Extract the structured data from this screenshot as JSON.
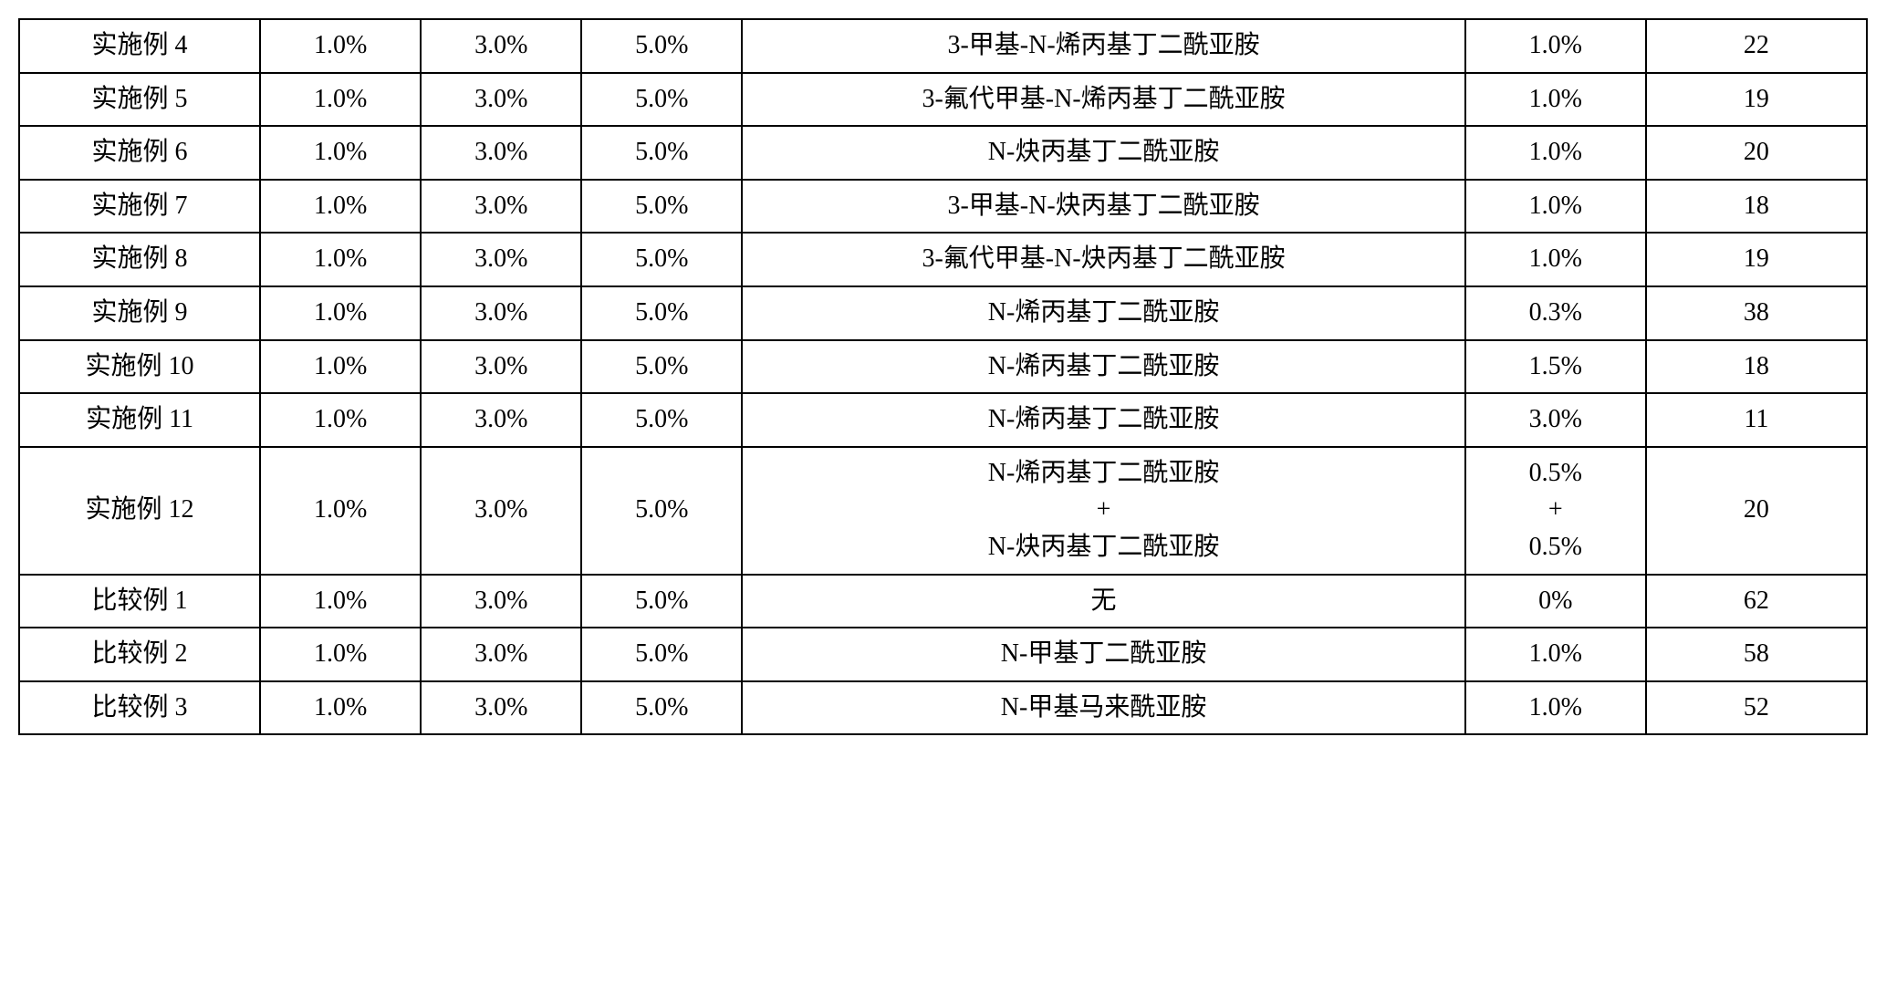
{
  "table": {
    "border_color": "#000000",
    "background_color": "#ffffff",
    "text_color": "#000000",
    "font_size_pt": 21,
    "column_widths_pct": [
      12,
      8,
      8,
      8,
      36,
      9,
      11
    ],
    "rows": [
      {
        "label": "实施例 4",
        "p1": "1.0%",
        "p2": "3.0%",
        "p3": "5.0%",
        "name": "3-甲基-N-烯丙基丁二酰亚胺",
        "amount": "1.0%",
        "result": "22"
      },
      {
        "label": "实施例 5",
        "p1": "1.0%",
        "p2": "3.0%",
        "p3": "5.0%",
        "name": "3-氟代甲基-N-烯丙基丁二酰亚胺",
        "amount": "1.0%",
        "result": "19"
      },
      {
        "label": "实施例 6",
        "p1": "1.0%",
        "p2": "3.0%",
        "p3": "5.0%",
        "name": "N-炔丙基丁二酰亚胺",
        "amount": "1.0%",
        "result": "20"
      },
      {
        "label": "实施例 7",
        "p1": "1.0%",
        "p2": "3.0%",
        "p3": "5.0%",
        "name": "3-甲基-N-炔丙基丁二酰亚胺",
        "amount": "1.0%",
        "result": "18"
      },
      {
        "label": "实施例 8",
        "p1": "1.0%",
        "p2": "3.0%",
        "p3": "5.0%",
        "name": "3-氟代甲基-N-炔丙基丁二酰亚胺",
        "amount": "1.0%",
        "result": "19"
      },
      {
        "label": "实施例 9",
        "p1": "1.0%",
        "p2": "3.0%",
        "p3": "5.0%",
        "name": "N-烯丙基丁二酰亚胺",
        "amount": "0.3%",
        "result": "38"
      },
      {
        "label": "实施例 10",
        "p1": "1.0%",
        "p2": "3.0%",
        "p3": "5.0%",
        "name": "N-烯丙基丁二酰亚胺",
        "amount": "1.5%",
        "result": "18"
      },
      {
        "label": "实施例 11",
        "p1": "1.0%",
        "p2": "3.0%",
        "p3": "5.0%",
        "name": "N-烯丙基丁二酰亚胺",
        "amount": "3.0%",
        "result": "11"
      },
      {
        "label": "实施例 12",
        "p1": "1.0%",
        "p2": "3.0%",
        "p3": "5.0%",
        "name": "N-烯丙基丁二酰亚胺\n+\nN-炔丙基丁二酰亚胺",
        "amount": "0.5%\n+\n0.5%",
        "result": "20"
      },
      {
        "label": "比较例 1",
        "p1": "1.0%",
        "p2": "3.0%",
        "p3": "5.0%",
        "name": "无",
        "amount": "0%",
        "result": "62"
      },
      {
        "label": "比较例 2",
        "p1": "1.0%",
        "p2": "3.0%",
        "p3": "5.0%",
        "name": "N-甲基丁二酰亚胺",
        "amount": "1.0%",
        "result": "58"
      },
      {
        "label": "比较例 3",
        "p1": "1.0%",
        "p2": "3.0%",
        "p3": "5.0%",
        "name": "N-甲基马来酰亚胺",
        "amount": "1.0%",
        "result": "52"
      }
    ]
  }
}
